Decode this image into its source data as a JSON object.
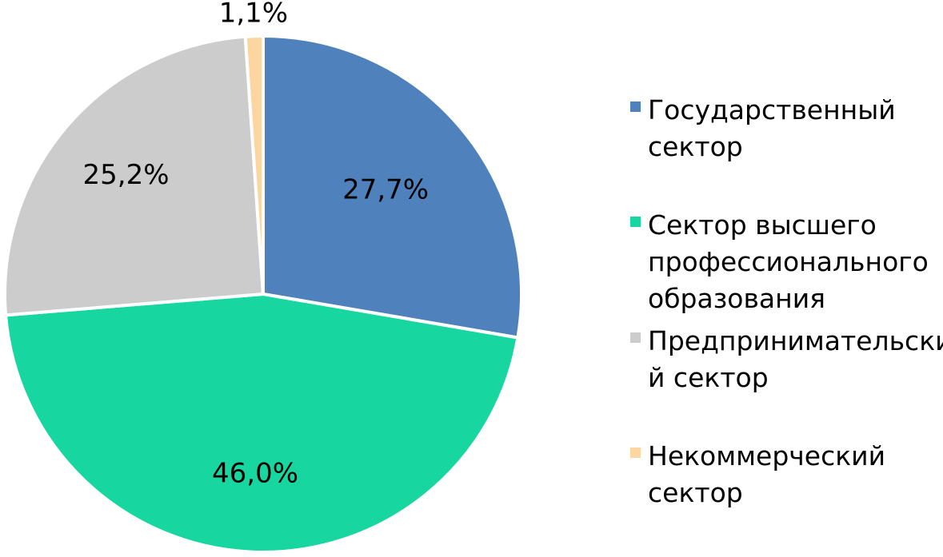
{
  "chart_data": {
    "type": "pie",
    "categories": [
      "Государственный сектор",
      "Сектор высшего профессионального образования",
      "Предпринимательский сектор",
      "Некоммерческий сектор"
    ],
    "values": [
      27.7,
      46.0,
      25.2,
      1.1
    ],
    "value_labels": [
      "27,7%",
      "46,0%",
      "25,2%",
      "1,1%"
    ],
    "colors": [
      "#4f81bd",
      "#18d6a0",
      "#cccccc",
      "#fcd5a0"
    ],
    "legend_position": "right",
    "start_angle": "12 o'clock, clockwise"
  },
  "legend": {
    "items": [
      {
        "line1": "Государственный",
        "line2": "сектор",
        "line3": ""
      },
      {
        "line1": "Сектор высшего",
        "line2": "профессионального",
        "line3": "образования"
      },
      {
        "line1": "Предпринимательски",
        "line2": "й сектор",
        "line3": ""
      },
      {
        "line1": "Некоммерческий",
        "line2": "сектор",
        "line3": ""
      }
    ]
  }
}
